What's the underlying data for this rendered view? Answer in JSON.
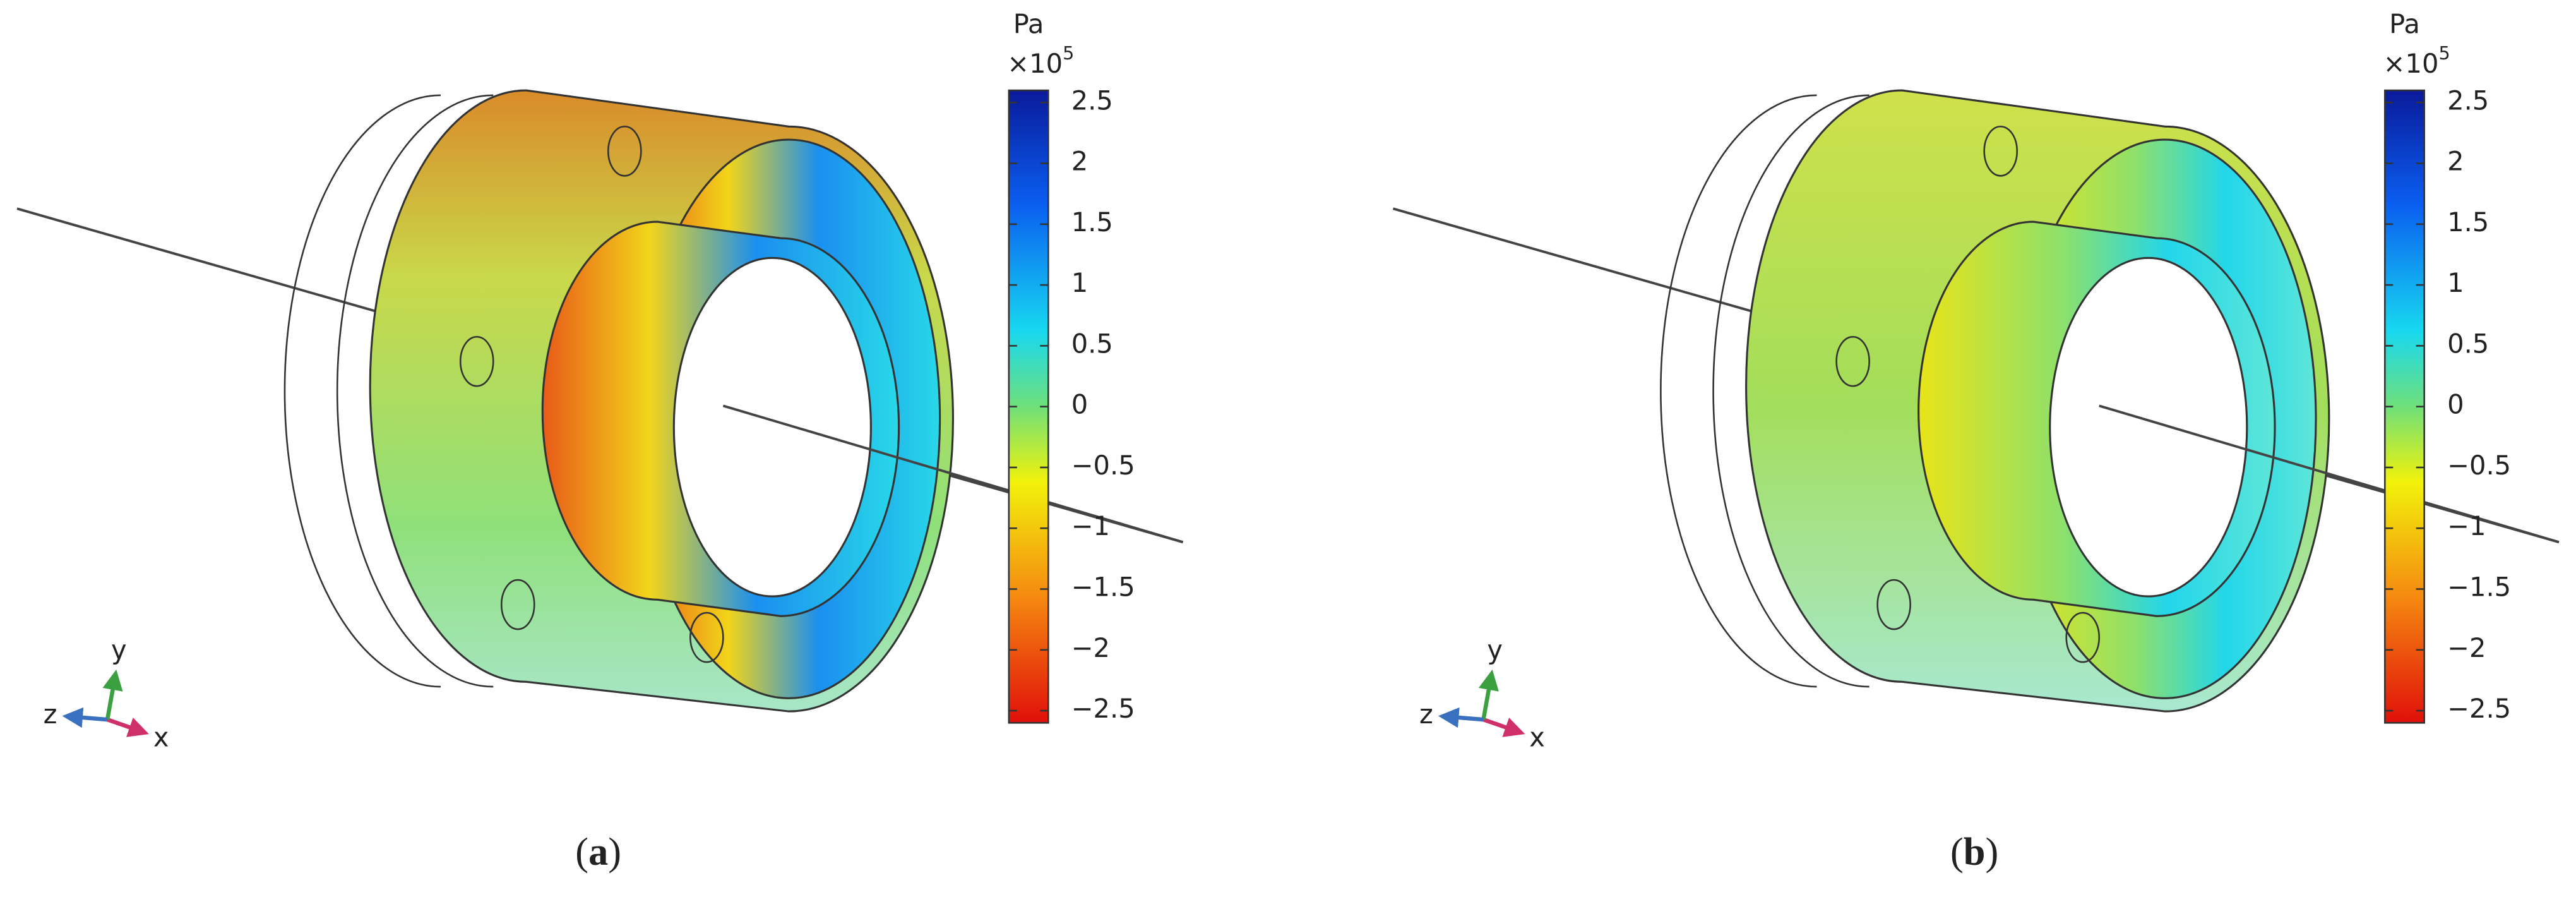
{
  "panels": [
    {
      "caption": {
        "open": "(",
        "letter": "a",
        "close": ")"
      },
      "colorbar": {
        "unit": "Pa",
        "scale": "×10",
        "exponent": "5",
        "lim": [
          -2.6,
          2.6
        ],
        "ticks": [
          2.5,
          2,
          1.5,
          1,
          0.5,
          0,
          {
            "value": -0.5,
            "label": "−0.5"
          },
          {
            "value": -1,
            "label": "−1"
          },
          {
            "value": -1.5,
            "label": "−1.5"
          },
          {
            "value": -2,
            "label": "−2"
          },
          {
            "value": -2.5,
            "label": "−2.5"
          }
        ]
      },
      "axes": {
        "x": "x",
        "y": "y",
        "z": "z"
      }
    },
    {
      "caption": {
        "open": "(",
        "letter": "b",
        "close": ")"
      },
      "colorbar": {
        "unit": "Pa",
        "scale": "×10",
        "exponent": "5",
        "lim": [
          -2.6,
          2.6
        ],
        "ticks": [
          2.5,
          2,
          1.5,
          1,
          0.5,
          0,
          {
            "value": -0.5,
            "label": "−0.5"
          },
          {
            "value": -1,
            "label": "−1"
          },
          {
            "value": -1.5,
            "label": "−1.5"
          },
          {
            "value": -2,
            "label": "−2"
          },
          {
            "value": -2.5,
            "label": "−2.5"
          }
        ]
      },
      "axes": {
        "x": "x",
        "y": "y",
        "z": "z"
      }
    }
  ]
}
